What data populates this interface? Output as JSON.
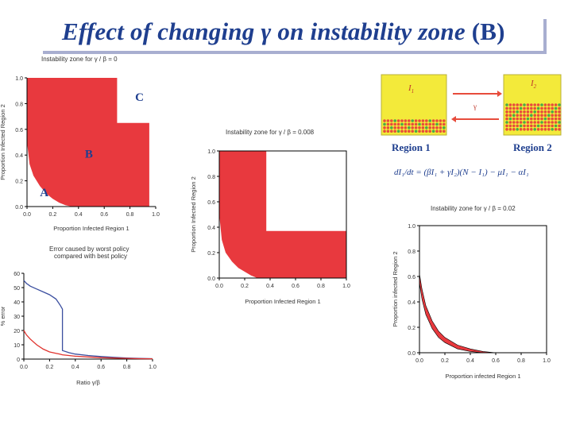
{
  "slide": {
    "title_prefix": "Effect of changing ",
    "title_greek": "γ",
    "title_middle": " on instability zone ",
    "title_suffix": "(B)"
  },
  "colors": {
    "accent": "#1f3f8f",
    "zone": "#e8393e",
    "series_blue": "#3b4fa0",
    "series_red": "#e0332e"
  },
  "panel_a": {
    "caption": "Instability zone for γ / β = 0",
    "xlabel": "Proportion Infected Region 1",
    "ylabel": "Proportion Infected Region 2",
    "xticks": [
      "0.0",
      "0.2",
      "0.4",
      "0.6",
      "0.8",
      "1.0"
    ],
    "yticks": [
      "0.0",
      "0.2",
      "0.4",
      "0.6",
      "0.8",
      "1.0"
    ],
    "labels": {
      "a": "A",
      "b": "B",
      "c": "C"
    }
  },
  "panel_b": {
    "caption": "Instability zone for γ / β = 0.008",
    "xlabel": "Proportion Infected Region 1",
    "ylabel": "Proportion Infected Region 2",
    "xticks": [
      "0.0",
      "0.2",
      "0.4",
      "0.6",
      "0.8",
      "1.0"
    ],
    "yticks": [
      "0.0",
      "0.2",
      "0.4",
      "0.6",
      "0.8",
      "1.0"
    ]
  },
  "panel_c": {
    "caption": "Instability zone for γ / β = 0.02",
    "xlabel": "Proportion infected Region 1",
    "ylabel": "Proportion infected Region 2",
    "xticks": [
      "0.0",
      "0.2",
      "0.4",
      "0.6",
      "0.8",
      "1.0"
    ],
    "yticks": [
      "0.0",
      "0.2",
      "0.4",
      "0.6",
      "0.8",
      "1.0"
    ]
  },
  "panel_error": {
    "caption_line1": "Error caused by worst policy",
    "caption_line2": "compared with best policy",
    "xlabel": "Ratio γ/β",
    "ylabel": "% error",
    "xticks": [
      "0.0",
      "0.2",
      "0.4",
      "0.6",
      "0.8",
      "1.0"
    ],
    "yticks": [
      "0",
      "10",
      "20",
      "30",
      "40",
      "50",
      "60"
    ]
  },
  "schematic": {
    "box1_label": "I",
    "box1_sub": "1",
    "box2_label": "I",
    "box2_sub": "2",
    "arrow_label": "γ",
    "region1": "Region 1",
    "region2": "Region 2",
    "equation": "dI₁/dt = (βI₁ + γI₂)(N − I₁) − μI₁ − αI₁"
  },
  "chart_data": [
    {
      "type": "area",
      "title": "Instability zone for γ / β = 0",
      "xlabel": "Proportion Infected Region 1",
      "ylabel": "Proportion Infected Region 2",
      "xlim": [
        0,
        1
      ],
      "ylim": [
        0,
        1
      ],
      "zone_outline": [
        [
          0.0,
          0.5
        ],
        [
          0.02,
          0.33
        ],
        [
          0.05,
          0.24
        ],
        [
          0.1,
          0.16
        ],
        [
          0.15,
          0.1
        ],
        [
          0.2,
          0.06
        ],
        [
          0.25,
          0.03
        ],
        [
          0.3,
          0.01
        ],
        [
          0.35,
          0.0
        ],
        [
          0.95,
          0.0
        ],
        [
          0.95,
          0.65
        ],
        [
          0.7,
          0.65
        ],
        [
          0.7,
          1.0
        ],
        [
          0.0,
          1.0
        ]
      ],
      "region_labels": [
        {
          "label": "A",
          "x": 0.1,
          "y": 0.08
        },
        {
          "label": "B",
          "x": 0.5,
          "y": 0.38
        },
        {
          "label": "C",
          "x": 0.85,
          "y": 0.82
        }
      ]
    },
    {
      "type": "area",
      "title": "Instability zone for γ / β = 0.008",
      "xlabel": "Proportion Infected Region 1",
      "ylabel": "Proportion Infected Region 2",
      "xlim": [
        0,
        1
      ],
      "ylim": [
        0,
        1
      ],
      "zone_outline": [
        [
          0.0,
          0.5
        ],
        [
          0.02,
          0.3
        ],
        [
          0.05,
          0.2
        ],
        [
          0.1,
          0.13
        ],
        [
          0.15,
          0.08
        ],
        [
          0.2,
          0.05
        ],
        [
          0.25,
          0.02
        ],
        [
          0.3,
          0.0
        ],
        [
          1.0,
          0.0
        ],
        [
          1.0,
          0.37
        ],
        [
          0.37,
          0.37
        ],
        [
          0.37,
          1.0
        ],
        [
          0.0,
          1.0
        ]
      ]
    },
    {
      "type": "line",
      "title": "Error caused by worst policy compared with best policy",
      "xlabel": "Ratio γ/β",
      "ylabel": "% error",
      "xlim": [
        0,
        1
      ],
      "ylim": [
        0,
        60
      ],
      "x": [
        0.0,
        0.02,
        0.05,
        0.1,
        0.15,
        0.2,
        0.25,
        0.28,
        0.3,
        0.3,
        0.35,
        0.4,
        0.5,
        0.6,
        0.7,
        0.8,
        0.9,
        1.0
      ],
      "series": [
        {
          "name": "worst policy (blue)",
          "values": [
            55,
            53,
            51,
            49,
            47,
            45,
            42,
            38,
            35,
            6,
            4.5,
            3.5,
            2.5,
            1.8,
            1.2,
            0.8,
            0.5,
            0.3
          ]
        },
        {
          "name": "red",
          "values": [
            20,
            17,
            14,
            10,
            7,
            5,
            4,
            3.5,
            3,
            3,
            2.5,
            2,
            1.5,
            1,
            0.7,
            0.5,
            0.3,
            0.2
          ]
        }
      ]
    },
    {
      "type": "area",
      "title": "Instability zone for γ / β = 0.02",
      "xlabel": "Proportion infected Region 1",
      "ylabel": "Proportion infected Region 2",
      "xlim": [
        0,
        1
      ],
      "ylim": [
        0,
        1
      ],
      "band_upper": [
        [
          0.0,
          0.62
        ],
        [
          0.02,
          0.5
        ],
        [
          0.05,
          0.37
        ],
        [
          0.1,
          0.25
        ],
        [
          0.15,
          0.17
        ],
        [
          0.2,
          0.12
        ],
        [
          0.3,
          0.06
        ],
        [
          0.4,
          0.03
        ],
        [
          0.5,
          0.01
        ],
        [
          0.6,
          0.0
        ]
      ],
      "band_lower": [
        [
          0.0,
          0.55
        ],
        [
          0.02,
          0.42
        ],
        [
          0.05,
          0.3
        ],
        [
          0.1,
          0.19
        ],
        [
          0.15,
          0.12
        ],
        [
          0.2,
          0.08
        ],
        [
          0.3,
          0.03
        ],
        [
          0.4,
          0.01
        ],
        [
          0.5,
          0.0
        ]
      ]
    }
  ]
}
